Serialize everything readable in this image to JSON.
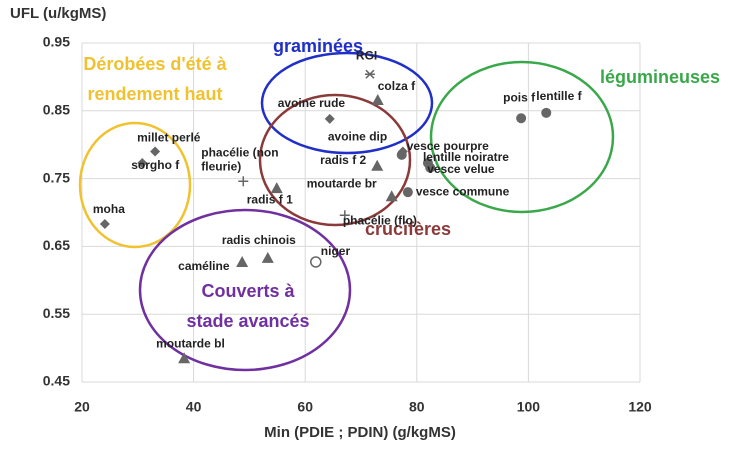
{
  "chart_data": {
    "type": "scatter",
    "y_label": "UFL (u/kgMS)",
    "x_label": "Min (PDIE ; PDIN) (g/kgMS)",
    "xlim": [
      20,
      120
    ],
    "xticks": [
      20,
      40,
      60,
      80,
      100,
      120
    ],
    "ylim": [
      0.45,
      0.95
    ],
    "yticks": [
      0.45,
      0.55,
      0.65,
      0.75,
      0.85,
      0.95
    ],
    "grid": true,
    "marker_color": "#666666",
    "points": [
      {
        "label": "moha",
        "x": 24.1,
        "y": 0.683,
        "marker": "diamond"
      },
      {
        "label": "millet perlé",
        "x": 33.1,
        "y": 0.79,
        "marker": "diamond"
      },
      {
        "label": "sorgho f",
        "x": 30.8,
        "y": 0.773,
        "marker": "diamond"
      },
      {
        "label": [
          "phacélie (non",
          "fleurie)"
        ],
        "x": 48.9,
        "y": 0.746,
        "marker": "plus"
      },
      {
        "label": "radis f 1",
        "x": 54.9,
        "y": 0.736,
        "marker": "triangle"
      },
      {
        "label": "avoine rude",
        "x": 64.4,
        "y": 0.838,
        "marker": "diamond"
      },
      {
        "label": "RGI",
        "x": 71.6,
        "y": 0.904,
        "marker": "asterisk"
      },
      {
        "label": "colza f",
        "x": 73,
        "y": 0.866,
        "marker": "triangle"
      },
      {
        "label": "radis f 2",
        "x": 72.9,
        "y": 0.769,
        "marker": "triangle"
      },
      {
        "label": "avoine dip",
        "x": 77.5,
        "y": 0.79,
        "marker": "diamond"
      },
      {
        "label": "moutarde br",
        "x": 75.5,
        "y": 0.724,
        "marker": "triangle"
      },
      {
        "label": "phacélie (flo)",
        "x": 67.1,
        "y": 0.696,
        "marker": "plus"
      },
      {
        "label": "vesce pourpre",
        "x": 77.3,
        "y": 0.785,
        "marker": "circle"
      },
      {
        "label": "lentille noiratre",
        "x": 82,
        "y": 0.773,
        "marker": "circle"
      },
      {
        "label": "vesce velue",
        "x": 82.4,
        "y": 0.766,
        "marker": "circle"
      },
      {
        "label": "vesce commune",
        "x": 78.4,
        "y": 0.73,
        "marker": "circle"
      },
      {
        "label": "pois f",
        "x": 98.7,
        "y": 0.839,
        "marker": "circle"
      },
      {
        "label": "lentille f",
        "x": 103.2,
        "y": 0.847,
        "marker": "circle"
      },
      {
        "label": "radis chinois",
        "x": 53.3,
        "y": 0.633,
        "marker": "triangle"
      },
      {
        "label": "caméline",
        "x": 48.7,
        "y": 0.627,
        "marker": "triangle"
      },
      {
        "label": "niger",
        "x": 61.9,
        "y": 0.627,
        "marker": "open-circle"
      },
      {
        "label": "moutarde bl",
        "x": 38.3,
        "y": 0.485,
        "marker": "triangle"
      }
    ],
    "groups": [
      {
        "label": [
          "Dérobées d'été à",
          "rendement haut"
        ],
        "color": "#f0c230"
      },
      {
        "label": [
          "graminées"
        ],
        "color": "#1f2fc8"
      },
      {
        "label": [
          "légumineuses"
        ],
        "color": "#3aa84a"
      },
      {
        "label": [
          "crucifères"
        ],
        "color": "#8b3a3a"
      },
      {
        "label": [
          "Couverts à",
          "stade avancés"
        ],
        "color": "#7030a0"
      }
    ]
  }
}
